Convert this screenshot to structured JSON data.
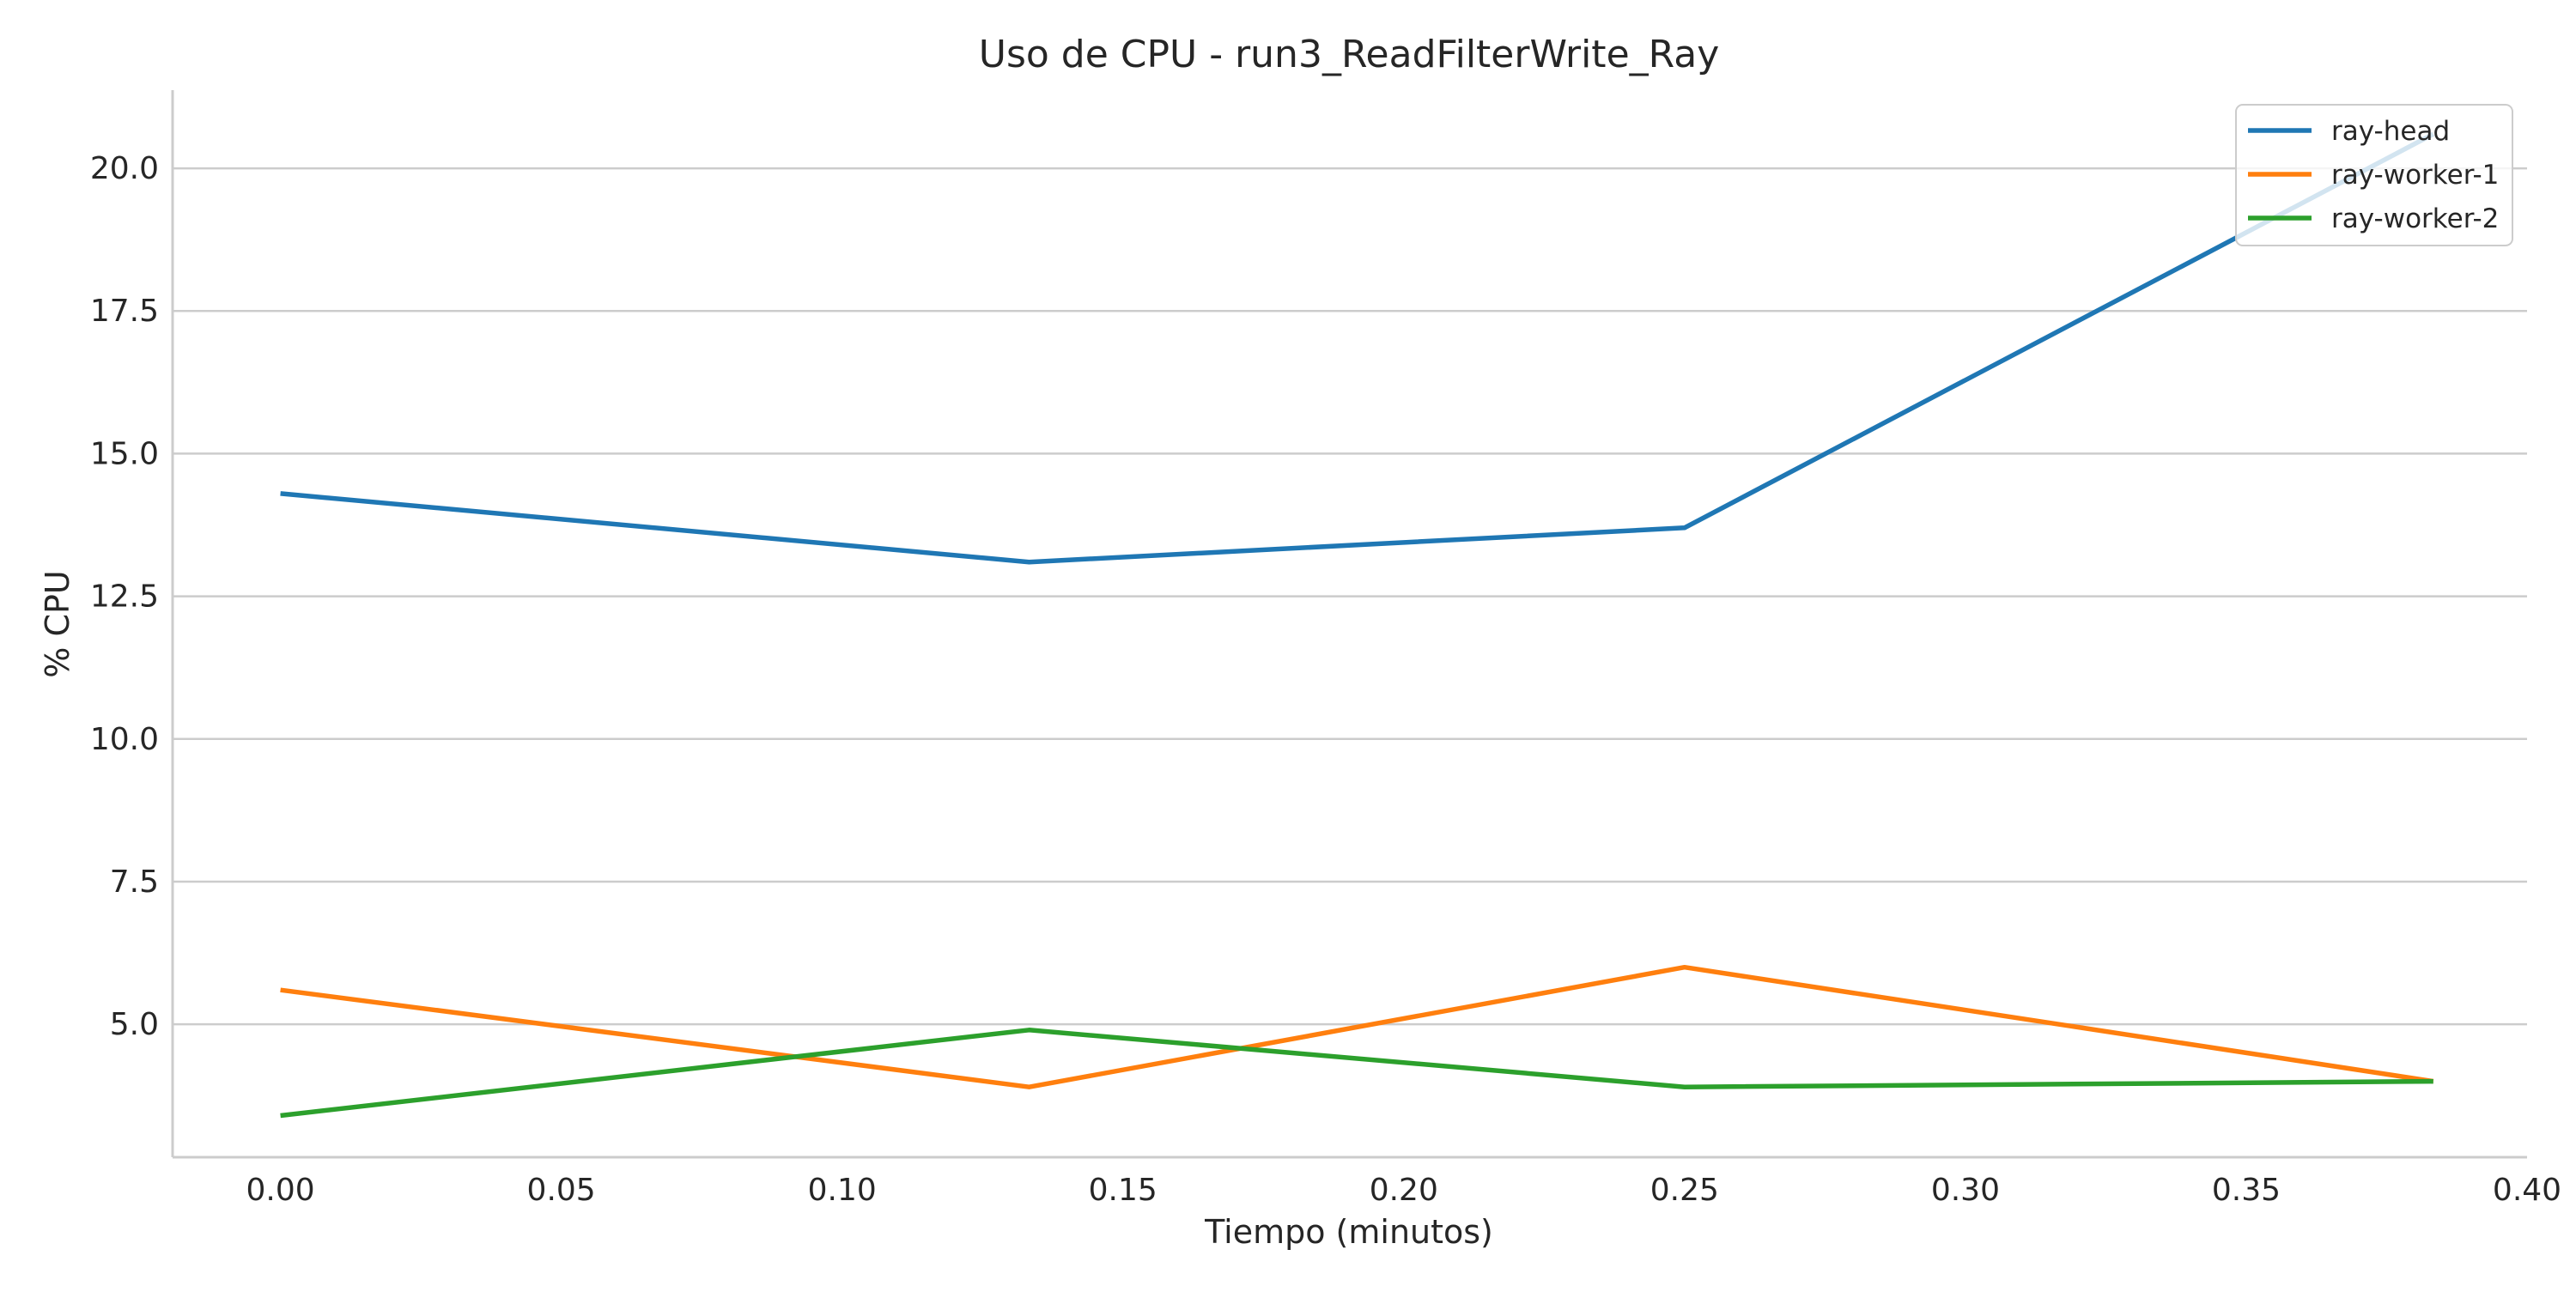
{
  "chart_data": {
    "type": "line",
    "title": "Uso de CPU - run3_ReadFilterWrite_Ray",
    "xlabel": "Tiempo (minutos)",
    "ylabel": "% CPU",
    "xlim": [
      -0.0192,
      0.4
    ],
    "ylim": [
      2.67,
      21.37
    ],
    "x_ticks": [
      0.0,
      0.05,
      0.1,
      0.15,
      0.2,
      0.25,
      0.3,
      0.35,
      0.4
    ],
    "x_tick_labels": [
      "0.00",
      "0.05",
      "0.10",
      "0.15",
      "0.20",
      "0.25",
      "0.30",
      "0.35",
      "0.40"
    ],
    "y_ticks": [
      5.0,
      7.5,
      10.0,
      12.5,
      15.0,
      17.5,
      20.0
    ],
    "y_tick_labels": [
      "5.0",
      "7.5",
      "10.0",
      "12.5",
      "15.0",
      "17.5",
      "20.0"
    ],
    "grid": "horizontal",
    "legend_position": "top-right",
    "x": [
      0.0,
      0.1333,
      0.25,
      0.3833
    ],
    "series": [
      {
        "name": "ray-head",
        "color": "#1f77b4",
        "values": [
          14.3,
          13.1,
          13.7,
          20.6
        ]
      },
      {
        "name": "ray-worker-1",
        "color": "#ff7f0e",
        "values": [
          5.6,
          3.9,
          6.0,
          4.0
        ]
      },
      {
        "name": "ray-worker-2",
        "color": "#2ca02c",
        "values": [
          3.4,
          4.9,
          3.9,
          4.0
        ]
      }
    ]
  }
}
